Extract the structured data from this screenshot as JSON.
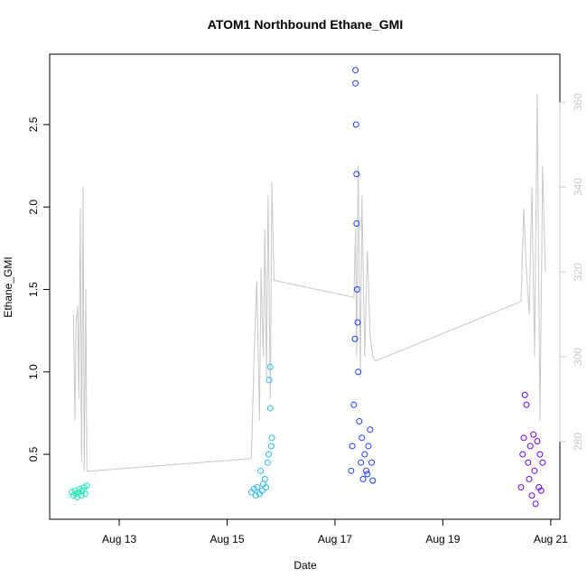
{
  "chart_data": {
    "type": "scatter",
    "title": "ATOM1 Northbound Ethane_GMI",
    "x_label": "Date",
    "y_label": "Ethane_GMI",
    "xlim": [
      11.71,
      21.17
    ],
    "ylim": [
      0.106,
      2.927
    ],
    "y2lim": [
      261.7,
      371.3
    ],
    "xticks": [
      {
        "value": 13,
        "label": "Aug 13"
      },
      {
        "value": 15,
        "label": "Aug 15"
      },
      {
        "value": 17,
        "label": "Aug 17"
      },
      {
        "value": 19,
        "label": "Aug 19"
      },
      {
        "value": 21,
        "label": "Aug 21"
      }
    ],
    "yticks": [
      0.5,
      {
        "value": 1,
        "label": "1.0"
      },
      1.5,
      {
        "value": 2,
        "label": "2.0"
      },
      2.5
    ],
    "y2ticks": [
      280,
      300,
      320,
      340,
      360
    ],
    "series": [
      {
        "type": "line",
        "axis": "y2",
        "color": "#c8c8c8",
        "x": [
          12.15,
          12.18,
          12.2,
          12.23,
          12.25,
          12.28,
          12.3,
          12.33,
          12.35,
          12.38,
          12.4,
          15.45,
          15.5,
          15.55,
          15.6,
          15.63,
          15.67,
          15.7,
          15.73,
          15.76,
          15.8,
          15.83,
          15.87,
          17.35,
          17.38,
          17.4,
          17.43,
          17.47,
          17.5,
          17.55,
          17.6,
          17.65,
          17.7,
          17.75,
          20.45,
          20.5,
          20.55,
          20.6,
          20.65,
          20.7,
          20.75,
          20.8,
          20.85,
          20.9
        ],
        "values": [
          310,
          285,
          308,
          312,
          290,
          335,
          275,
          340,
          273,
          316,
          273,
          276,
          300,
          318,
          285,
          321,
          300,
          330,
          295,
          338,
          290,
          341,
          318,
          314,
          330,
          300,
          345,
          295,
          338,
          300,
          325,
          305,
          300,
          299,
          313,
          335,
          320,
          310,
          340,
          300,
          362,
          285,
          345,
          320
        ]
      },
      {
        "color": "#1de9b6",
        "x": [
          12.12,
          12.15,
          12.18,
          12.2,
          12.22,
          12.25,
          12.27,
          12.3,
          12.32,
          12.35,
          12.37,
          12.4
        ],
        "values": [
          0.27,
          0.25,
          0.28,
          0.26,
          0.24,
          0.27,
          0.29,
          0.25,
          0.28,
          0.3,
          0.26,
          0.31
        ]
      },
      {
        "color": "#29b6f6",
        "x": [
          15.45,
          15.5,
          15.53,
          15.56,
          15.6,
          15.62,
          15.65,
          15.67,
          15.7,
          15.72,
          15.75,
          15.77,
          15.78,
          15.8,
          15.8,
          15.82,
          15.83
        ],
        "values": [
          0.27,
          0.29,
          0.25,
          0.3,
          0.26,
          0.4,
          0.28,
          0.32,
          0.35,
          0.3,
          0.45,
          0.5,
          0.95,
          1.03,
          0.78,
          0.55,
          0.6
        ]
      },
      {
        "color": "#1a3cff",
        "x": [
          17.3,
          17.32,
          17.35,
          17.37,
          17.38,
          17.38,
          17.39,
          17.4,
          17.4,
          17.41,
          17.42,
          17.43,
          17.45,
          17.48,
          17.5,
          17.52,
          17.55,
          17.58,
          17.6,
          17.62,
          17.65,
          17.68,
          17.7
        ],
        "values": [
          0.4,
          0.55,
          0.8,
          1.2,
          2.83,
          2.75,
          2.5,
          2.2,
          1.9,
          1.5,
          1.3,
          1.0,
          0.7,
          0.45,
          0.6,
          0.35,
          0.5,
          0.4,
          0.38,
          0.55,
          0.65,
          0.45,
          0.34
        ]
      },
      {
        "color": "#6a00ff",
        "x": [
          20.45,
          20.48,
          20.5,
          20.52,
          20.55,
          20.58,
          20.6,
          20.62,
          20.65,
          20.68,
          20.7,
          20.72,
          20.75,
          20.78,
          20.8,
          20.82,
          20.85
        ],
        "values": [
          0.3,
          0.5,
          0.6,
          0.86,
          0.8,
          0.45,
          0.35,
          0.55,
          0.25,
          0.62,
          0.4,
          0.2,
          0.58,
          0.3,
          0.5,
          0.28,
          0.45
        ]
      }
    ]
  }
}
